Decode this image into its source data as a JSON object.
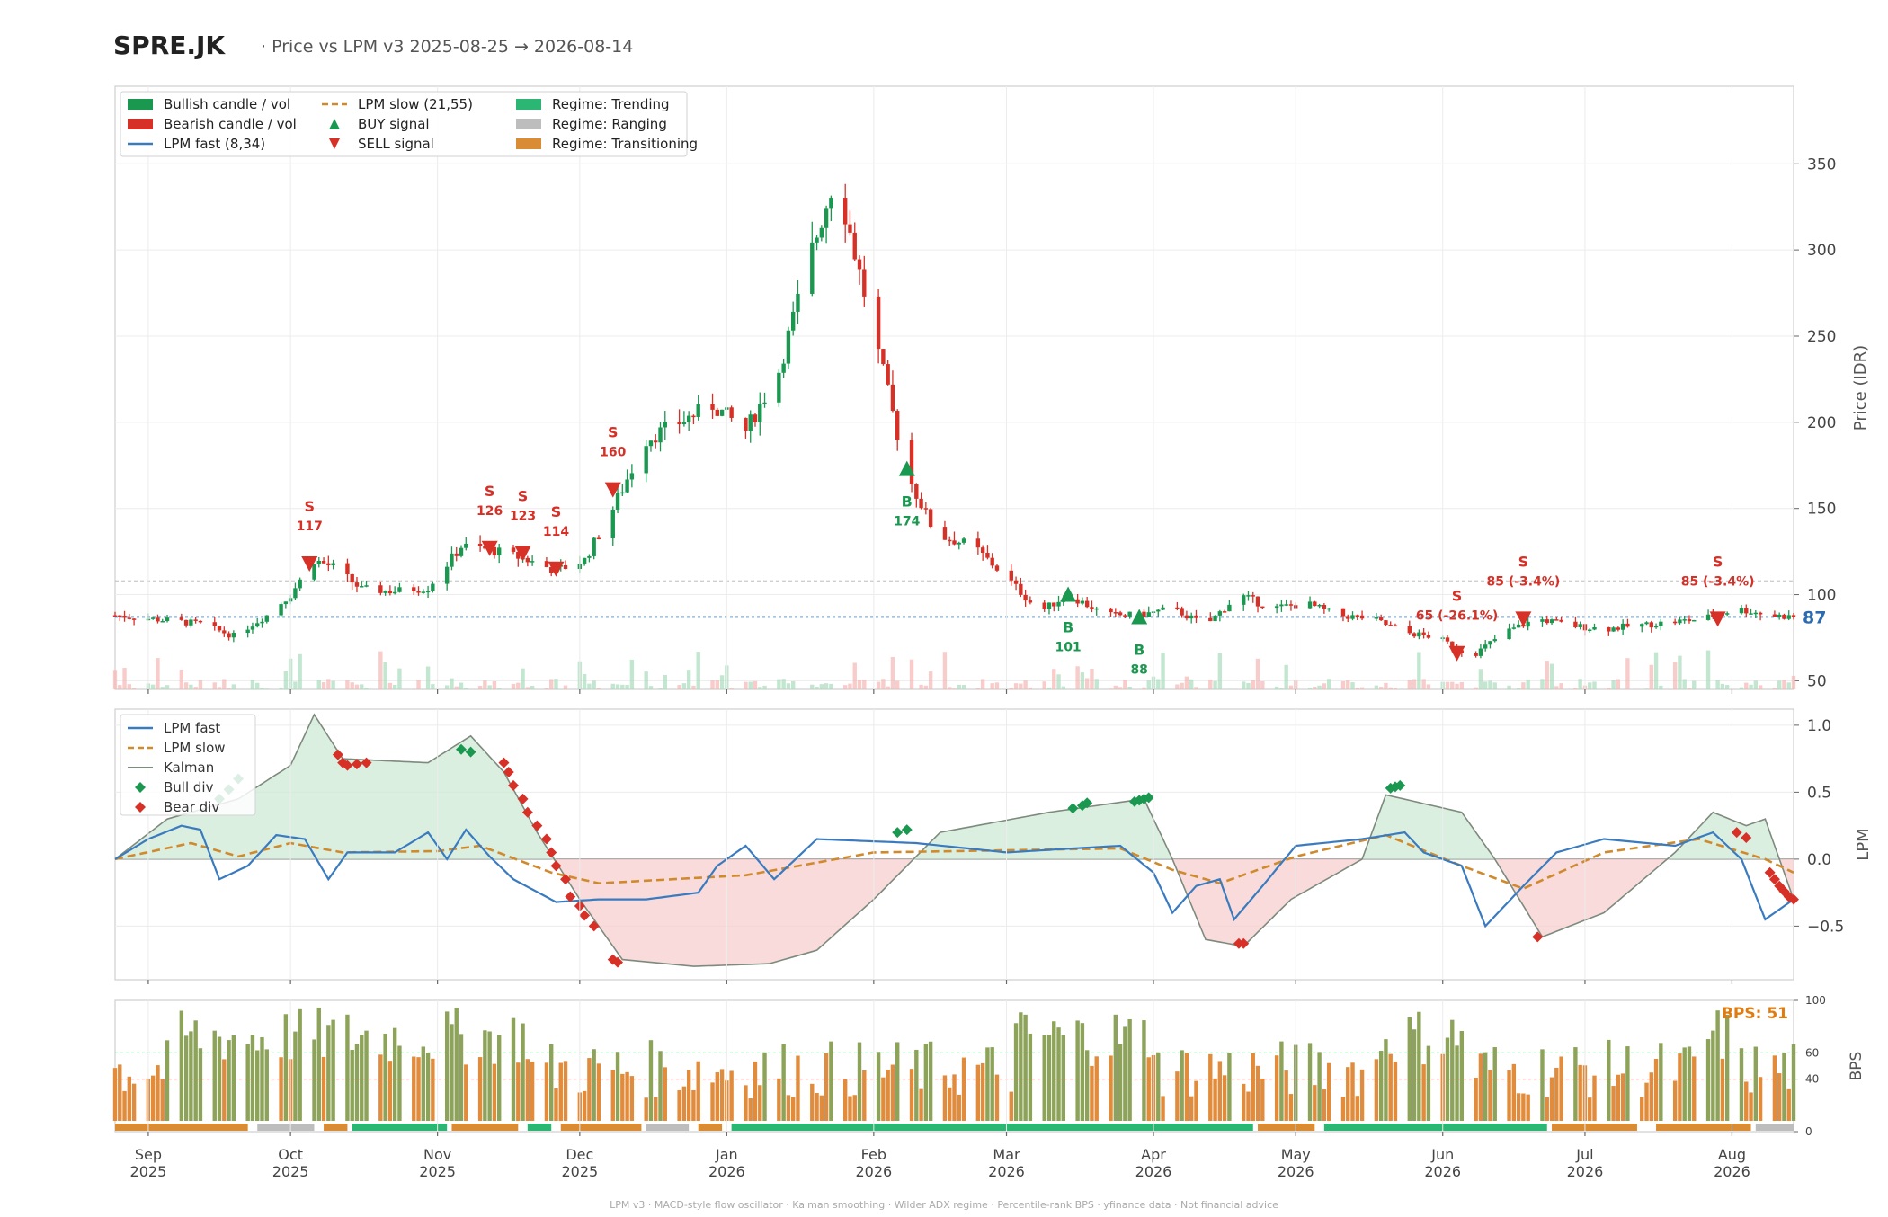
{
  "header": {
    "ticker": "SPRE.JK",
    "subtitle": "· Price vs LPM v3  2025-08-25 → 2026-08-14"
  },
  "footer": "LPM v3  ·  MACD-style flow oscillator  ·  Kalman smoothing  ·  Wilder ADX regime  ·  Percentile-rank BPS  ·  yfinance data  ·  Not financial advice",
  "colors": {
    "bull": "#1a9850",
    "bear": "#d73027",
    "fast": "#3a7bbf",
    "slow": "#d08a2e",
    "kalman": "#7d8a7d",
    "trending": "#2bb673",
    "ranging": "#bdbdbd",
    "transitioning": "#d98c33",
    "bps_bar": "#e08c3c",
    "bps_high": "#8da35a"
  },
  "chart_data": [
    {
      "type": "candlestick",
      "panel": "price",
      "ylabel": "Price (IDR)",
      "yticks": [
        50,
        100,
        150,
        200,
        250,
        300,
        350
      ],
      "ylim": [
        45,
        395
      ],
      "last_price": 87,
      "last_price_label": "87",
      "grid": true,
      "legend_placement": "top-left",
      "legend": [
        {
          "label": "Bullish candle / vol",
          "kind": "bull-box"
        },
        {
          "label": "Bearish candle / vol",
          "kind": "bear-box"
        },
        {
          "label": "LPM fast (8,34)",
          "kind": "fast-line"
        },
        {
          "label": "LPM slow (21,55)",
          "kind": "slow-dash"
        },
        {
          "label": "BUY signal",
          "kind": "buy-tri"
        },
        {
          "label": "SELL signal",
          "kind": "sell-tri"
        },
        {
          "label": "Regime: Trending",
          "kind": "trend-box"
        },
        {
          "label": "Regime: Ranging",
          "kind": "range-box"
        },
        {
          "label": "Regime: Transitioning",
          "kind": "trans-box"
        }
      ],
      "signals": [
        {
          "side": "SELL",
          "letter": "S",
          "label": "117",
          "date": "2025-10-05",
          "price": 118
        },
        {
          "side": "SELL",
          "letter": "S",
          "label": "126",
          "date": "2025-11-12",
          "price": 127
        },
        {
          "side": "SELL",
          "letter": "S",
          "label": "123",
          "date": "2025-11-19",
          "price": 124
        },
        {
          "side": "SELL",
          "letter": "S",
          "label": "114",
          "date": "2025-11-26",
          "price": 115
        },
        {
          "side": "SELL",
          "letter": "S",
          "label": "160",
          "date": "2025-12-08",
          "price": 161
        },
        {
          "side": "BUY",
          "letter": "B",
          "label": "174",
          "date": "2026-02-08",
          "price": 173
        },
        {
          "side": "BUY",
          "letter": "B",
          "label": "101",
          "date": "2026-03-14",
          "price": 100
        },
        {
          "side": "BUY",
          "letter": "B",
          "label": "88",
          "date": "2026-03-29",
          "price": 87
        },
        {
          "side": "SELL",
          "letter": "S",
          "label": "65 (-26.1%)",
          "date": "2026-06-04",
          "price": 66
        },
        {
          "side": "SELL",
          "letter": "S",
          "label": "85 (-3.4%)",
          "date": "2026-06-18",
          "price": 86
        },
        {
          "side": "SELL",
          "letter": "S",
          "label": "85 (-3.4%)",
          "date": "2026-07-29",
          "price": 86
        }
      ]
    },
    {
      "type": "line",
      "panel": "lpm",
      "ylabel": "LPM",
      "yticks": [
        -0.5,
        0.0,
        0.5,
        1.0
      ],
      "ytick_labels": [
        "−0.5",
        "0.0",
        "0.5",
        "1.0"
      ],
      "ylim": [
        -0.9,
        1.12
      ],
      "grid": true,
      "legend_placement": "top-left",
      "legend": [
        {
          "label": "LPM fast",
          "kind": "fast-line"
        },
        {
          "label": "LPM slow",
          "kind": "slow-dash"
        },
        {
          "label": "Kalman",
          "kind": "kalman-line"
        },
        {
          "label": "Bull div",
          "kind": "bull-diamond"
        },
        {
          "label": "Bear div",
          "kind": "bear-diamond"
        }
      ]
    },
    {
      "type": "bar",
      "panel": "bps",
      "ylabel": "BPS",
      "yticks": [
        0,
        40,
        60,
        100
      ],
      "ylim": [
        0,
        100
      ],
      "thresholds": [
        60,
        40
      ],
      "last_value": 51,
      "last_label": "BPS: 51",
      "regime_segments": [
        {
          "regime": "Transitioning",
          "start": "2025-08-25",
          "end": "2025-09-22"
        },
        {
          "regime": "Ranging",
          "start": "2025-09-24",
          "end": "2025-10-06"
        },
        {
          "regime": "Transitioning",
          "start": "2025-10-08",
          "end": "2025-10-13"
        },
        {
          "regime": "Trending",
          "start": "2025-10-14",
          "end": "2025-11-03"
        },
        {
          "regime": "Transitioning",
          "start": "2025-11-04",
          "end": "2025-11-18"
        },
        {
          "regime": "Trending",
          "start": "2025-11-20",
          "end": "2025-11-25"
        },
        {
          "regime": "Transitioning",
          "start": "2025-11-27",
          "end": "2025-12-14"
        },
        {
          "regime": "Ranging",
          "start": "2025-12-15",
          "end": "2025-12-24"
        },
        {
          "regime": "Transitioning",
          "start": "2025-12-26",
          "end": "2025-12-31"
        },
        {
          "regime": "Trending",
          "start": "2026-01-02",
          "end": "2026-04-22"
        },
        {
          "regime": "Transitioning",
          "start": "2026-04-23",
          "end": "2026-05-05"
        },
        {
          "regime": "Trending",
          "start": "2026-05-07",
          "end": "2026-06-23"
        },
        {
          "regime": "Transitioning",
          "start": "2026-06-24",
          "end": "2026-07-12"
        },
        {
          "regime": "Transitioning",
          "start": "2026-07-16",
          "end": "2026-08-05"
        },
        {
          "regime": "Ranging",
          "start": "2026-08-06",
          "end": "2026-08-14"
        }
      ]
    }
  ],
  "x_axis": {
    "start": "2025-08-25",
    "end": "2026-08-14",
    "ticks": [
      {
        "date": "2025-09-01",
        "month": "Sep",
        "year": "2025"
      },
      {
        "date": "2025-10-01",
        "month": "Oct",
        "year": "2025"
      },
      {
        "date": "2025-11-01",
        "month": "Nov",
        "year": "2025"
      },
      {
        "date": "2025-12-01",
        "month": "Dec",
        "year": "2025"
      },
      {
        "date": "2026-01-01",
        "month": "Jan",
        "year": "2026"
      },
      {
        "date": "2026-02-01",
        "month": "Feb",
        "year": "2026"
      },
      {
        "date": "2026-03-01",
        "month": "Mar",
        "year": "2026"
      },
      {
        "date": "2026-04-01",
        "month": "Apr",
        "year": "2026"
      },
      {
        "date": "2026-05-01",
        "month": "May",
        "year": "2026"
      },
      {
        "date": "2026-06-01",
        "month": "Jun",
        "year": "2026"
      },
      {
        "date": "2026-07-01",
        "month": "Jul",
        "year": "2026"
      },
      {
        "date": "2026-08-01",
        "month": "Aug",
        "year": "2026"
      }
    ]
  },
  "price_anchors": [
    [
      "2025-08-25",
      88
    ],
    [
      "2025-09-05",
      85
    ],
    [
      "2025-09-12",
      83
    ],
    [
      "2025-09-19",
      76
    ],
    [
      "2025-09-26",
      88
    ],
    [
      "2025-10-01",
      100
    ],
    [
      "2025-10-06",
      120
    ],
    [
      "2025-10-10",
      116
    ],
    [
      "2025-10-16",
      103
    ],
    [
      "2025-10-23",
      102
    ],
    [
      "2025-10-30",
      104
    ],
    [
      "2025-11-06",
      128
    ],
    [
      "2025-11-12",
      126
    ],
    [
      "2025-11-19",
      121
    ],
    [
      "2025-11-26",
      114
    ],
    [
      "2025-12-02",
      120
    ],
    [
      "2025-12-08",
      150
    ],
    [
      "2025-12-15",
      190
    ],
    [
      "2025-12-22",
      200
    ],
    [
      "2025-12-29",
      210
    ],
    [
      "2026-01-05",
      195
    ],
    [
      "2026-01-12",
      230
    ],
    [
      "2026-01-19",
      300
    ],
    [
      "2026-01-24",
      345
    ],
    [
      "2026-02-08",
      170
    ],
    [
      "2026-02-14",
      135
    ],
    [
      "2026-02-22",
      128
    ],
    [
      "2026-03-01",
      110
    ],
    [
      "2026-03-08",
      90
    ],
    [
      "2026-03-14",
      100
    ],
    [
      "2026-03-22",
      88
    ],
    [
      "2026-03-29",
      88
    ],
    [
      "2026-04-05",
      92
    ],
    [
      "2026-04-12",
      82
    ],
    [
      "2026-04-19",
      100
    ],
    [
      "2026-04-26",
      92
    ],
    [
      "2026-05-03",
      95
    ],
    [
      "2026-05-10",
      88
    ],
    [
      "2026-05-17",
      86
    ],
    [
      "2026-05-24",
      78
    ],
    [
      "2026-05-31",
      75
    ],
    [
      "2026-06-07",
      64
    ],
    [
      "2026-06-14",
      78
    ],
    [
      "2026-06-21",
      86
    ],
    [
      "2026-06-28",
      82
    ],
    [
      "2026-07-05",
      80
    ],
    [
      "2026-07-12",
      82
    ],
    [
      "2026-07-19",
      84
    ],
    [
      "2026-07-26",
      86
    ],
    [
      "2026-08-02",
      92
    ],
    [
      "2026-08-09",
      88
    ],
    [
      "2026-08-14",
      87
    ]
  ],
  "lpm_fast_anchors": [
    [
      "2025-08-25",
      0.0
    ],
    [
      "2025-09-01",
      0.15
    ],
    [
      "2025-09-08",
      0.25
    ],
    [
      "2025-09-12",
      0.22
    ],
    [
      "2025-09-16",
      -0.15
    ],
    [
      "2025-09-22",
      -0.05
    ],
    [
      "2025-09-28",
      0.18
    ],
    [
      "2025-10-04",
      0.15
    ],
    [
      "2025-10-09",
      -0.15
    ],
    [
      "2025-10-13",
      0.05
    ],
    [
      "2025-10-23",
      0.05
    ],
    [
      "2025-10-30",
      0.2
    ],
    [
      "2025-11-03",
      0.0
    ],
    [
      "2025-11-07",
      0.22
    ],
    [
      "2025-11-12",
      0.02
    ],
    [
      "2025-11-17",
      -0.15
    ],
    [
      "2025-11-26",
      -0.32
    ],
    [
      "2025-12-05",
      -0.3
    ],
    [
      "2025-12-15",
      -0.3
    ],
    [
      "2025-12-26",
      -0.25
    ],
    [
      "2025-12-30",
      -0.05
    ],
    [
      "2026-01-05",
      0.1
    ],
    [
      "2026-01-11",
      -0.15
    ],
    [
      "2026-01-20",
      0.15
    ],
    [
      "2026-02-10",
      0.12
    ],
    [
      "2026-03-01",
      0.05
    ],
    [
      "2026-03-15",
      0.08
    ],
    [
      "2026-03-25",
      0.1
    ],
    [
      "2026-04-01",
      -0.1
    ],
    [
      "2026-04-05",
      -0.4
    ],
    [
      "2026-04-10",
      -0.2
    ],
    [
      "2026-04-15",
      -0.15
    ],
    [
      "2026-04-18",
      -0.45
    ],
    [
      "2026-04-24",
      -0.2
    ],
    [
      "2026-05-01",
      0.1
    ],
    [
      "2026-05-15",
      0.15
    ],
    [
      "2026-05-24",
      0.2
    ],
    [
      "2026-05-28",
      0.05
    ],
    [
      "2026-06-05",
      -0.05
    ],
    [
      "2026-06-10",
      -0.5
    ],
    [
      "2026-06-18",
      -0.2
    ],
    [
      "2026-06-25",
      0.05
    ],
    [
      "2026-07-05",
      0.15
    ],
    [
      "2026-07-20",
      0.1
    ],
    [
      "2026-07-28",
      0.2
    ],
    [
      "2026-08-03",
      0.0
    ],
    [
      "2026-08-08",
      -0.45
    ],
    [
      "2026-08-14",
      -0.3
    ]
  ],
  "lpm_slow_anchors": [
    [
      "2025-08-25",
      0.0
    ],
    [
      "2025-09-10",
      0.12
    ],
    [
      "2025-09-20",
      0.02
    ],
    [
      "2025-10-01",
      0.12
    ],
    [
      "2025-10-12",
      0.05
    ],
    [
      "2025-11-01",
      0.06
    ],
    [
      "2025-11-10",
      0.1
    ],
    [
      "2025-11-25",
      -0.1
    ],
    [
      "2025-12-05",
      -0.18
    ],
    [
      "2026-01-05",
      -0.12
    ],
    [
      "2026-02-01",
      0.05
    ],
    [
      "2026-03-25",
      0.08
    ],
    [
      "2026-04-05",
      -0.08
    ],
    [
      "2026-04-15",
      -0.18
    ],
    [
      "2026-05-01",
      0.02
    ],
    [
      "2026-05-20",
      0.18
    ],
    [
      "2026-06-05",
      -0.05
    ],
    [
      "2026-06-18",
      -0.22
    ],
    [
      "2026-07-05",
      0.05
    ],
    [
      "2026-07-25",
      0.15
    ],
    [
      "2026-08-08",
      0.0
    ],
    [
      "2026-08-14",
      -0.1
    ]
  ],
  "kalman_anchors": [
    [
      "2025-08-25",
      0.0
    ],
    [
      "2025-09-05",
      0.3
    ],
    [
      "2025-09-20",
      0.45
    ],
    [
      "2025-10-01",
      0.7
    ],
    [
      "2025-10-06",
      1.08
    ],
    [
      "2025-10-12",
      0.75
    ],
    [
      "2025-10-30",
      0.72
    ],
    [
      "2025-11-08",
      0.92
    ],
    [
      "2025-11-15",
      0.65
    ],
    [
      "2025-11-22",
      0.2
    ],
    [
      "2025-12-01",
      -0.3
    ],
    [
      "2025-12-10",
      -0.75
    ],
    [
      "2025-12-25",
      -0.8
    ],
    [
      "2026-01-10",
      -0.78
    ],
    [
      "2026-01-20",
      -0.68
    ],
    [
      "2026-02-01",
      -0.3
    ],
    [
      "2026-02-15",
      0.2
    ],
    [
      "2026-03-10",
      0.35
    ],
    [
      "2026-03-30",
      0.45
    ],
    [
      "2026-04-05",
      0.0
    ],
    [
      "2026-04-12",
      -0.6
    ],
    [
      "2026-04-20",
      -0.65
    ],
    [
      "2026-04-30",
      -0.3
    ],
    [
      "2026-05-15",
      0.0
    ],
    [
      "2026-05-20",
      0.48
    ],
    [
      "2026-06-05",
      0.35
    ],
    [
      "2026-06-12",
      0.0
    ],
    [
      "2026-06-22",
      -0.58
    ],
    [
      "2026-07-05",
      -0.4
    ],
    [
      "2026-07-20",
      0.05
    ],
    [
      "2026-07-28",
      0.35
    ],
    [
      "2026-08-04",
      0.25
    ],
    [
      "2026-08-08",
      0.3
    ],
    [
      "2026-08-14",
      -0.3
    ]
  ],
  "bull_div": [
    [
      "2025-09-16",
      0.45
    ],
    [
      "2025-09-18",
      0.52
    ],
    [
      "2025-09-20",
      0.6
    ],
    [
      "2025-11-06",
      0.82
    ],
    [
      "2025-11-08",
      0.8
    ],
    [
      "2026-02-06",
      0.2
    ],
    [
      "2026-02-08",
      0.22
    ],
    [
      "2026-03-15",
      0.38
    ],
    [
      "2026-03-17",
      0.4
    ],
    [
      "2026-03-18",
      0.42
    ],
    [
      "2026-03-28",
      0.43
    ],
    [
      "2026-03-29",
      0.44
    ],
    [
      "2026-03-30",
      0.45
    ],
    [
      "2026-03-31",
      0.46
    ],
    [
      "2026-05-21",
      0.53
    ],
    [
      "2026-05-22",
      0.54
    ],
    [
      "2026-05-23",
      0.55
    ]
  ],
  "bear_div": [
    [
      "2025-10-11",
      0.78
    ],
    [
      "2025-10-12",
      0.72
    ],
    [
      "2025-10-13",
      0.7
    ],
    [
      "2025-10-15",
      0.71
    ],
    [
      "2025-10-17",
      0.72
    ],
    [
      "2025-11-15",
      0.72
    ],
    [
      "2025-11-16",
      0.65
    ],
    [
      "2025-11-17",
      0.55
    ],
    [
      "2025-11-19",
      0.45
    ],
    [
      "2025-11-20",
      0.35
    ],
    [
      "2025-11-22",
      0.25
    ],
    [
      "2025-11-24",
      0.15
    ],
    [
      "2025-11-25",
      0.05
    ],
    [
      "2025-11-26",
      -0.05
    ],
    [
      "2025-11-28",
      -0.15
    ],
    [
      "2025-11-29",
      -0.28
    ],
    [
      "2025-12-01",
      -0.35
    ],
    [
      "2025-12-02",
      -0.42
    ],
    [
      "2025-12-04",
      -0.5
    ],
    [
      "2025-12-08",
      -0.75
    ],
    [
      "2025-12-09",
      -0.77
    ],
    [
      "2026-04-19",
      -0.63
    ],
    [
      "2026-04-20",
      -0.63
    ],
    [
      "2026-06-21",
      -0.58
    ],
    [
      "2026-08-02",
      0.2
    ],
    [
      "2026-08-04",
      0.16
    ],
    [
      "2026-08-09",
      -0.1
    ],
    [
      "2026-08-10",
      -0.15
    ],
    [
      "2026-08-11",
      -0.2
    ],
    [
      "2026-08-12",
      -0.24
    ],
    [
      "2026-08-13",
      -0.28
    ],
    [
      "2026-08-14",
      -0.3
    ]
  ]
}
